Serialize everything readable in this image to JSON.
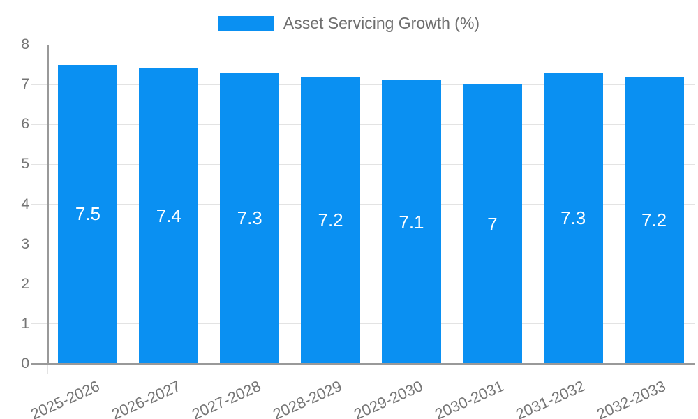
{
  "chart_data": {
    "type": "bar",
    "legend": "Asset Servicing Growth (%)",
    "legend_position": "top",
    "categories": [
      "2025-2026",
      "2026-2027",
      "2027-2028",
      "2028-2029",
      "2029-2030",
      "2030-2031",
      "2031-2032",
      "2032-2033"
    ],
    "values": [
      7.5,
      7.4,
      7.3,
      7.2,
      7.1,
      7,
      7.3,
      7.2
    ],
    "value_labels": [
      "7.5",
      "7.4",
      "7.3",
      "7.2",
      "7.1",
      "7",
      "7.3",
      "7.2"
    ],
    "xlabel": "",
    "ylabel": "",
    "ylim": [
      0,
      8
    ],
    "yticks": [
      0,
      1,
      2,
      3,
      4,
      5,
      6,
      7,
      8
    ],
    "grid": true,
    "bar_label_position": "center",
    "colors": {
      "bar": "#0a90f2",
      "gridline": "#e3e3e3",
      "axis_line": "#999999",
      "tick_text": "#757575",
      "legend_text": "#6e6e6e",
      "bar_label_text": "#ffffff",
      "background": "#ffffff"
    }
  }
}
